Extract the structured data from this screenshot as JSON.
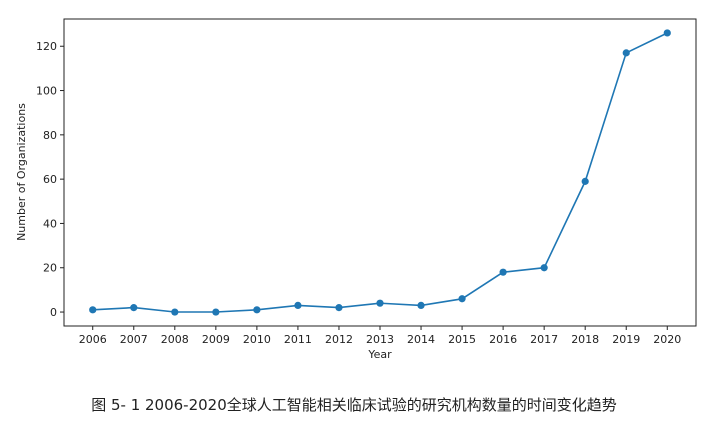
{
  "chart_data": {
    "type": "line",
    "xlabel": "Year",
    "ylabel": "Number of Organizations",
    "x": [
      2006,
      2007,
      2008,
      2009,
      2010,
      2011,
      2012,
      2013,
      2014,
      2015,
      2016,
      2017,
      2018,
      2019,
      2020
    ],
    "y": [
      1,
      2,
      0,
      0,
      1,
      3,
      2,
      4,
      3,
      6,
      18,
      20,
      59,
      117,
      126
    ],
    "xticks": [
      "2006",
      "2007",
      "2008",
      "2009",
      "2010",
      "2011",
      "2012",
      "2013",
      "2014",
      "2015",
      "2016",
      "2017",
      "2018",
      "2019",
      "2020"
    ],
    "yticks": [
      "0",
      "20",
      "40",
      "60",
      "80",
      "100",
      "120"
    ],
    "xlim": [
      2005.3,
      2020.7
    ],
    "ylim": [
      -6.3,
      132.3
    ],
    "grid": false,
    "color": "#1f77b4"
  },
  "caption": "图 5- 1 2006-2020全球人工智能相关临床试验的研究机构数量的时间变化趋势"
}
